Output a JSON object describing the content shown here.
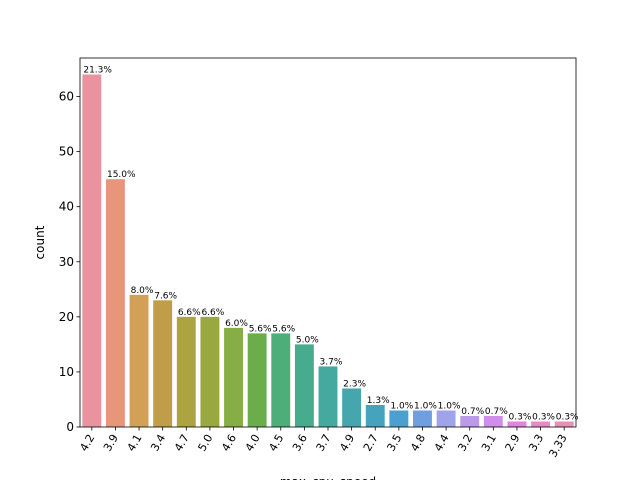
{
  "chart_data": {
    "type": "bar",
    "title": "",
    "xlabel": "max_cpu_speed",
    "ylabel": "count",
    "ylim": [
      0,
      67
    ],
    "yticks": [
      0,
      10,
      20,
      30,
      40,
      50,
      60
    ],
    "grid": false,
    "categories": [
      "4.2",
      "3.9",
      "4.1",
      "3.4",
      "4.7",
      "5.0",
      "4.6",
      "4.0",
      "4.5",
      "3.6",
      "3.7",
      "4.9",
      "2.7",
      "3.5",
      "4.8",
      "4.4",
      "3.2",
      "3.1",
      "2.9",
      "3.3",
      "3.33"
    ],
    "values": [
      64,
      45,
      24,
      23,
      20,
      20,
      18,
      17,
      17,
      15,
      11,
      7,
      4,
      3,
      3,
      3,
      2,
      2,
      1,
      1,
      1
    ],
    "labels": [
      "21.3%",
      "15.0%",
      "8.0%",
      "7.6%",
      "6.6%",
      "6.6%",
      "6.0%",
      "5.6%",
      "5.6%",
      "5.0%",
      "3.7%",
      "2.3%",
      "1.3%",
      "1.0%",
      "1.0%",
      "1.0%",
      "0.7%",
      "0.7%",
      "0.3%",
      "0.3%",
      "0.3%"
    ],
    "colors": [
      "#e8939e",
      "#e8967a",
      "#d2a056",
      "#bf9e47",
      "#aca440",
      "#99a83f",
      "#87ad45",
      "#6aad4a",
      "#4eae7a",
      "#47ab8e",
      "#45a99f",
      "#45a6ae",
      "#46a3be",
      "#4ba0d0",
      "#6f9fe0",
      "#9ea3ea",
      "#bb9aea",
      "#d08eea",
      "#e183df",
      "#e98ac8",
      "#ea8fb8"
    ]
  }
}
